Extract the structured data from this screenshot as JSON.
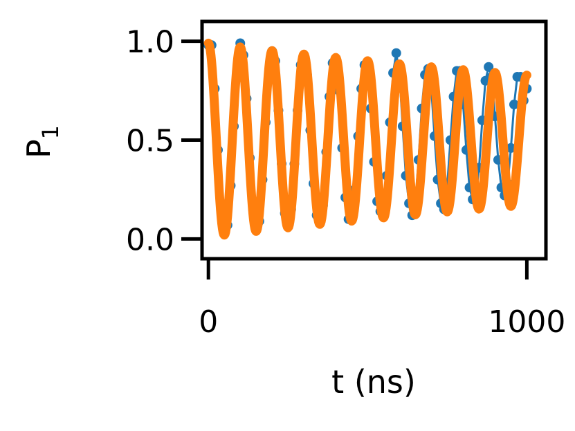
{
  "chart_data": {
    "type": "line",
    "title": "",
    "xlabel": "t (ns)",
    "ylabel": "P",
    "ylabel_subscript": "1",
    "xlim": [
      -20,
      1060
    ],
    "ylim": [
      -0.1,
      1.1
    ],
    "xticks": [
      {
        "value": 0,
        "label": "0"
      },
      {
        "value": 1000,
        "label": "1000"
      }
    ],
    "yticks": [
      {
        "value": 0.0,
        "label": "0.0"
      },
      {
        "value": 0.5,
        "label": "0.5"
      },
      {
        "value": 1.0,
        "label": "1.0"
      }
    ],
    "grid": false,
    "legend": "none",
    "series": [
      {
        "kind": "data",
        "style": "markers with thin line",
        "color": "#1f77b4",
        "x": [
          0,
          10,
          20,
          30,
          40,
          50,
          60,
          70,
          80,
          90,
          100,
          110,
          120,
          130,
          140,
          150,
          160,
          170,
          180,
          190,
          200,
          210,
          220,
          230,
          240,
          250,
          260,
          270,
          280,
          290,
          300,
          310,
          320,
          330,
          340,
          350,
          360,
          370,
          380,
          390,
          400,
          410,
          420,
          430,
          440,
          450,
          460,
          470,
          480,
          490,
          500,
          510,
          520,
          530,
          540,
          550,
          560,
          570,
          580,
          590,
          600,
          610,
          620,
          630,
          640,
          650,
          660,
          670,
          680,
          690,
          700,
          710,
          720,
          730,
          740,
          750,
          760,
          770,
          780,
          790,
          800,
          810,
          820,
          830,
          840,
          850,
          860,
          870,
          880,
          890,
          900,
          910,
          920,
          930,
          940,
          950,
          960,
          970,
          980,
          990,
          1000
        ],
        "y": [
          0.98,
          0.98,
          0.76,
          0.45,
          0.16,
          0.04,
          0.07,
          0.27,
          0.57,
          0.84,
          0.99,
          0.93,
          0.71,
          0.41,
          0.15,
          0.07,
          0.09,
          0.3,
          0.59,
          0.84,
          0.95,
          0.9,
          0.65,
          0.38,
          0.13,
          0.08,
          0.15,
          0.38,
          0.65,
          0.88,
          0.93,
          0.83,
          0.55,
          0.28,
          0.12,
          0.08,
          0.17,
          0.44,
          0.72,
          0.89,
          0.9,
          0.75,
          0.46,
          0.21,
          0.1,
          0.1,
          0.25,
          0.52,
          0.76,
          0.88,
          0.86,
          0.66,
          0.39,
          0.19,
          0.14,
          0.17,
          0.32,
          0.59,
          0.84,
          0.94,
          0.83,
          0.57,
          0.32,
          0.18,
          0.12,
          0.18,
          0.4,
          0.66,
          0.83,
          0.86,
          0.76,
          0.52,
          0.3,
          0.18,
          0.15,
          0.27,
          0.5,
          0.72,
          0.85,
          0.85,
          0.68,
          0.45,
          0.26,
          0.2,
          0.22,
          0.36,
          0.6,
          0.8,
          0.87,
          0.82,
          0.62,
          0.4,
          0.26,
          0.22,
          0.28,
          0.46,
          0.68,
          0.82,
          0.82,
          0.7,
          0.76
        ]
      },
      {
        "kind": "fit",
        "style": "thick line",
        "color": "#ff7f0e",
        "function": "0.5 + A*exp(-t/tau)*cos(2*pi*f*t)",
        "params": {
          "A": 0.49,
          "tau": 2500,
          "f": 0.01
        }
      }
    ]
  }
}
